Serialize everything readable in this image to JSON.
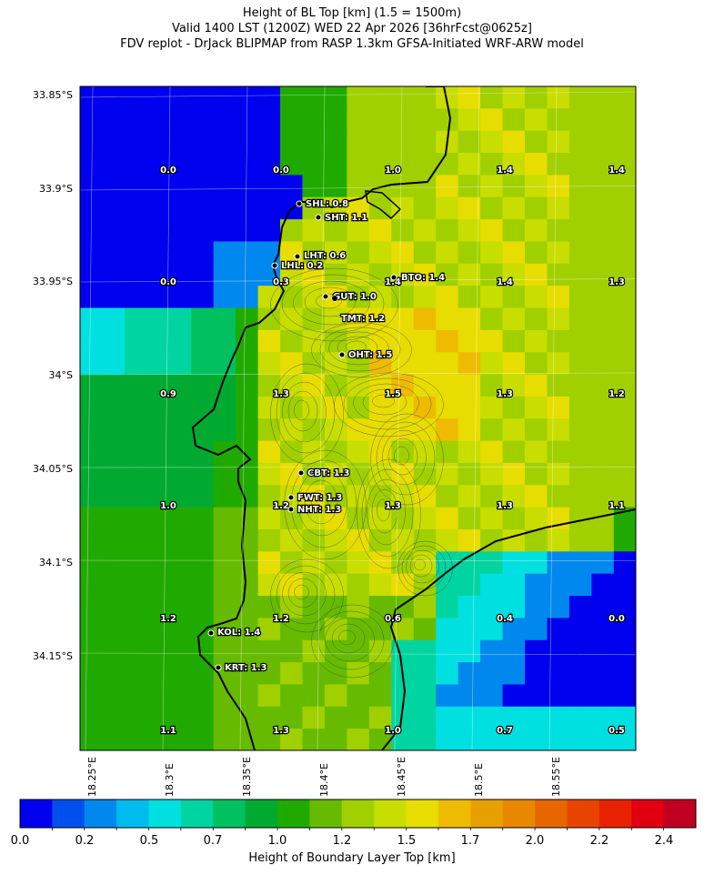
{
  "title": {
    "line1": "Height of BL Top [km] (1.5 = 1500m)",
    "line2": "Valid 1400 LST (1200Z) WED 22 Apr 2026 [36hrFcst@0625z]",
    "line3": "FDV replot - DrJack BLIPMAP from RASP 1.3km GFSA-Initiated WRF-ARW model"
  },
  "axes": {
    "lat_labels": [
      "33.85°S",
      "33.9°S",
      "33.95°S",
      "34°S",
      "34.05°S",
      "34.1°S",
      "34.15°S"
    ],
    "lon_labels": [
      "18.25°E",
      "18.3°E",
      "18.35°E",
      "18.4°E",
      "18.45°E",
      "18.5°E",
      "18.55°E"
    ]
  },
  "colorbar": {
    "title": "Height of Boundary Layer Top [km]",
    "tick_labels": [
      "0.0",
      "0.2",
      "0.5",
      "0.7",
      "1.0",
      "1.2",
      "1.5",
      "1.7",
      "2.0",
      "2.2",
      "2.4"
    ],
    "colors": [
      "#0000ee",
      "#0050ee",
      "#0088ee",
      "#00bbee",
      "#00e0e0",
      "#00d4a0",
      "#00c060",
      "#00aa30",
      "#20aa00",
      "#66bb00",
      "#a0d000",
      "#c8dd00",
      "#e8dd00",
      "#eebb00",
      "#e8a000",
      "#e88800",
      "#e86600",
      "#e84400",
      "#e82200",
      "#e00010",
      "#c00020"
    ]
  },
  "grid_values": [
    [
      "0.0",
      "0.0",
      "1.0",
      "1.4",
      "1.4"
    ],
    [
      "0.0",
      "0.3",
      "1.4",
      "1.4",
      "1.3"
    ],
    [
      "0.9",
      "1.3",
      "1.5",
      "1.3",
      "1.2"
    ],
    [
      "1.0",
      "1.2",
      "1.3",
      "1.3",
      "1.1"
    ],
    [
      "1.2",
      "1.2",
      "0.6",
      "0.4",
      "0.0"
    ],
    [
      "1.1",
      "1.3",
      "1.0",
      "0.7",
      "0.5"
    ]
  ],
  "stations": [
    {
      "label": "SHL: 0.8"
    },
    {
      "label": "SHT: 1.1"
    },
    {
      "label": "LHT: 0.6"
    },
    {
      "label": "LHL: 0.2"
    },
    {
      "label": "BTO: 1.4"
    },
    {
      "label": "GUT: 1.0"
    },
    {
      "label": "TMT: 1.2"
    },
    {
      "label": "OHT: 1.5"
    },
    {
      "label": "CBT: 1.3"
    },
    {
      "label": "FWT: 1.3"
    },
    {
      "label": "NHT: 1.3"
    },
    {
      "label": "KOL: 1.4"
    },
    {
      "label": "KRT: 1.3"
    }
  ]
}
